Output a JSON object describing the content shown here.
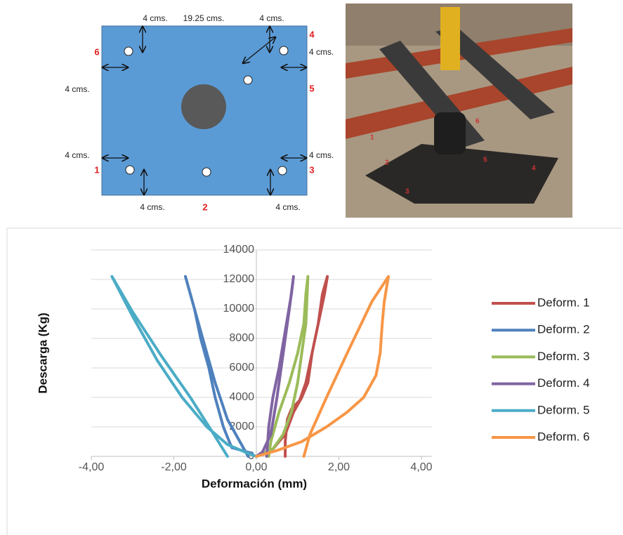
{
  "diagram": {
    "labels": [
      "4 cms.",
      "19.25 cms.",
      "4 cms.",
      "4",
      "4 cms.",
      "6",
      "4 cms.",
      "5",
      "4 cms.",
      "4 cms.",
      "1",
      "3",
      "4 cms.",
      "2",
      "4 cms."
    ]
  },
  "photo": {
    "labels": [
      "1",
      "2",
      "3",
      "4",
      "5",
      "6"
    ]
  },
  "chart_data": {
    "type": "line",
    "x_label": "Deformación (mm)",
    "y_label": "Descarga (Kg)",
    "xlim": [
      -4,
      4
    ],
    "ylim": [
      0,
      14000
    ],
    "xticks": [
      {
        "value": -4,
        "label": "-4,00"
      },
      {
        "value": -2,
        "label": "-2,00"
      },
      {
        "value": 0,
        "label": "0,00"
      },
      {
        "value": 2,
        "label": "2,00"
      },
      {
        "value": 4,
        "label": "4,00"
      }
    ],
    "yticks": [
      0,
      2000,
      4000,
      6000,
      8000,
      10000,
      12000,
      14000
    ],
    "grid": true,
    "legend": "right",
    "series": [
      {
        "name": "Deform. 1",
        "color": "#c0504d",
        "x": [
          0,
          0.4,
          0.7,
          0.9,
          1.1,
          1.25,
          1.35,
          1.5,
          1.6,
          1.72,
          1.65,
          1.5,
          1.35,
          1.2,
          1.05,
          0.85,
          0.75,
          0.7,
          0.7
        ],
        "values": [
          0,
          500,
          1500,
          3000,
          4000,
          5000,
          7000,
          9000,
          11000,
          12200,
          11000,
          9000,
          7000,
          5000,
          3800,
          3200,
          2500,
          1000,
          0
        ]
      },
      {
        "name": "Deform. 2",
        "color": "#4f81bd",
        "x": [
          -0.2,
          -0.4,
          -0.7,
          -1.0,
          -1.3,
          -1.5,
          -1.72,
          -1.6,
          -1.5,
          -1.35,
          -1.15,
          -1.0,
          -0.8,
          -0.6,
          -0.1
        ],
        "values": [
          0,
          1000,
          2500,
          5000,
          8000,
          10000,
          12200,
          11000,
          10000,
          8000,
          6000,
          4000,
          2000,
          600,
          200
        ]
      },
      {
        "name": "Deform. 3",
        "color": "#9bbb59",
        "x": [
          0,
          0.4,
          0.65,
          0.85,
          1.0,
          1.1,
          1.2,
          1.25,
          1.2,
          1.15,
          1.0,
          0.8,
          0.55,
          0.35,
          0.3
        ],
        "values": [
          0,
          500,
          1500,
          3000,
          5000,
          7000,
          9000,
          12200,
          11000,
          9000,
          7000,
          5000,
          3000,
          1000,
          0
        ]
      },
      {
        "name": "Deform. 4",
        "color": "#8064a2",
        "x": [
          0,
          0.15,
          0.35,
          0.5,
          0.65,
          0.8,
          0.9,
          0.85,
          0.7,
          0.55,
          0.4,
          0.3,
          0.25
        ],
        "values": [
          0,
          300,
          1500,
          4000,
          7000,
          10000,
          12200,
          11000,
          8500,
          6000,
          4000,
          2000,
          0
        ]
      },
      {
        "name": "Deform. 5",
        "color": "#4bacc6",
        "x": [
          0,
          -0.2,
          -0.7,
          -1.2,
          -1.8,
          -2.4,
          -3.0,
          -3.5,
          -3.0,
          -2.3,
          -1.6,
          -1.1,
          -0.7
        ],
        "values": [
          0,
          200,
          800,
          2000,
          4000,
          6500,
          9500,
          12200,
          9800,
          6800,
          4000,
          1800,
          0
        ]
      },
      {
        "name": "Deform. 6",
        "color": "#f79646",
        "x": [
          0,
          0.5,
          1.1,
          1.7,
          2.2,
          2.6,
          2.9,
          3.0,
          3.05,
          3.1,
          3.2,
          2.8,
          2.2,
          1.7,
          1.3,
          1.15
        ],
        "values": [
          0,
          400,
          1000,
          2000,
          3000,
          4000,
          5500,
          7000,
          9000,
          10500,
          12200,
          10500,
          7000,
          4000,
          1500,
          0
        ]
      }
    ]
  }
}
